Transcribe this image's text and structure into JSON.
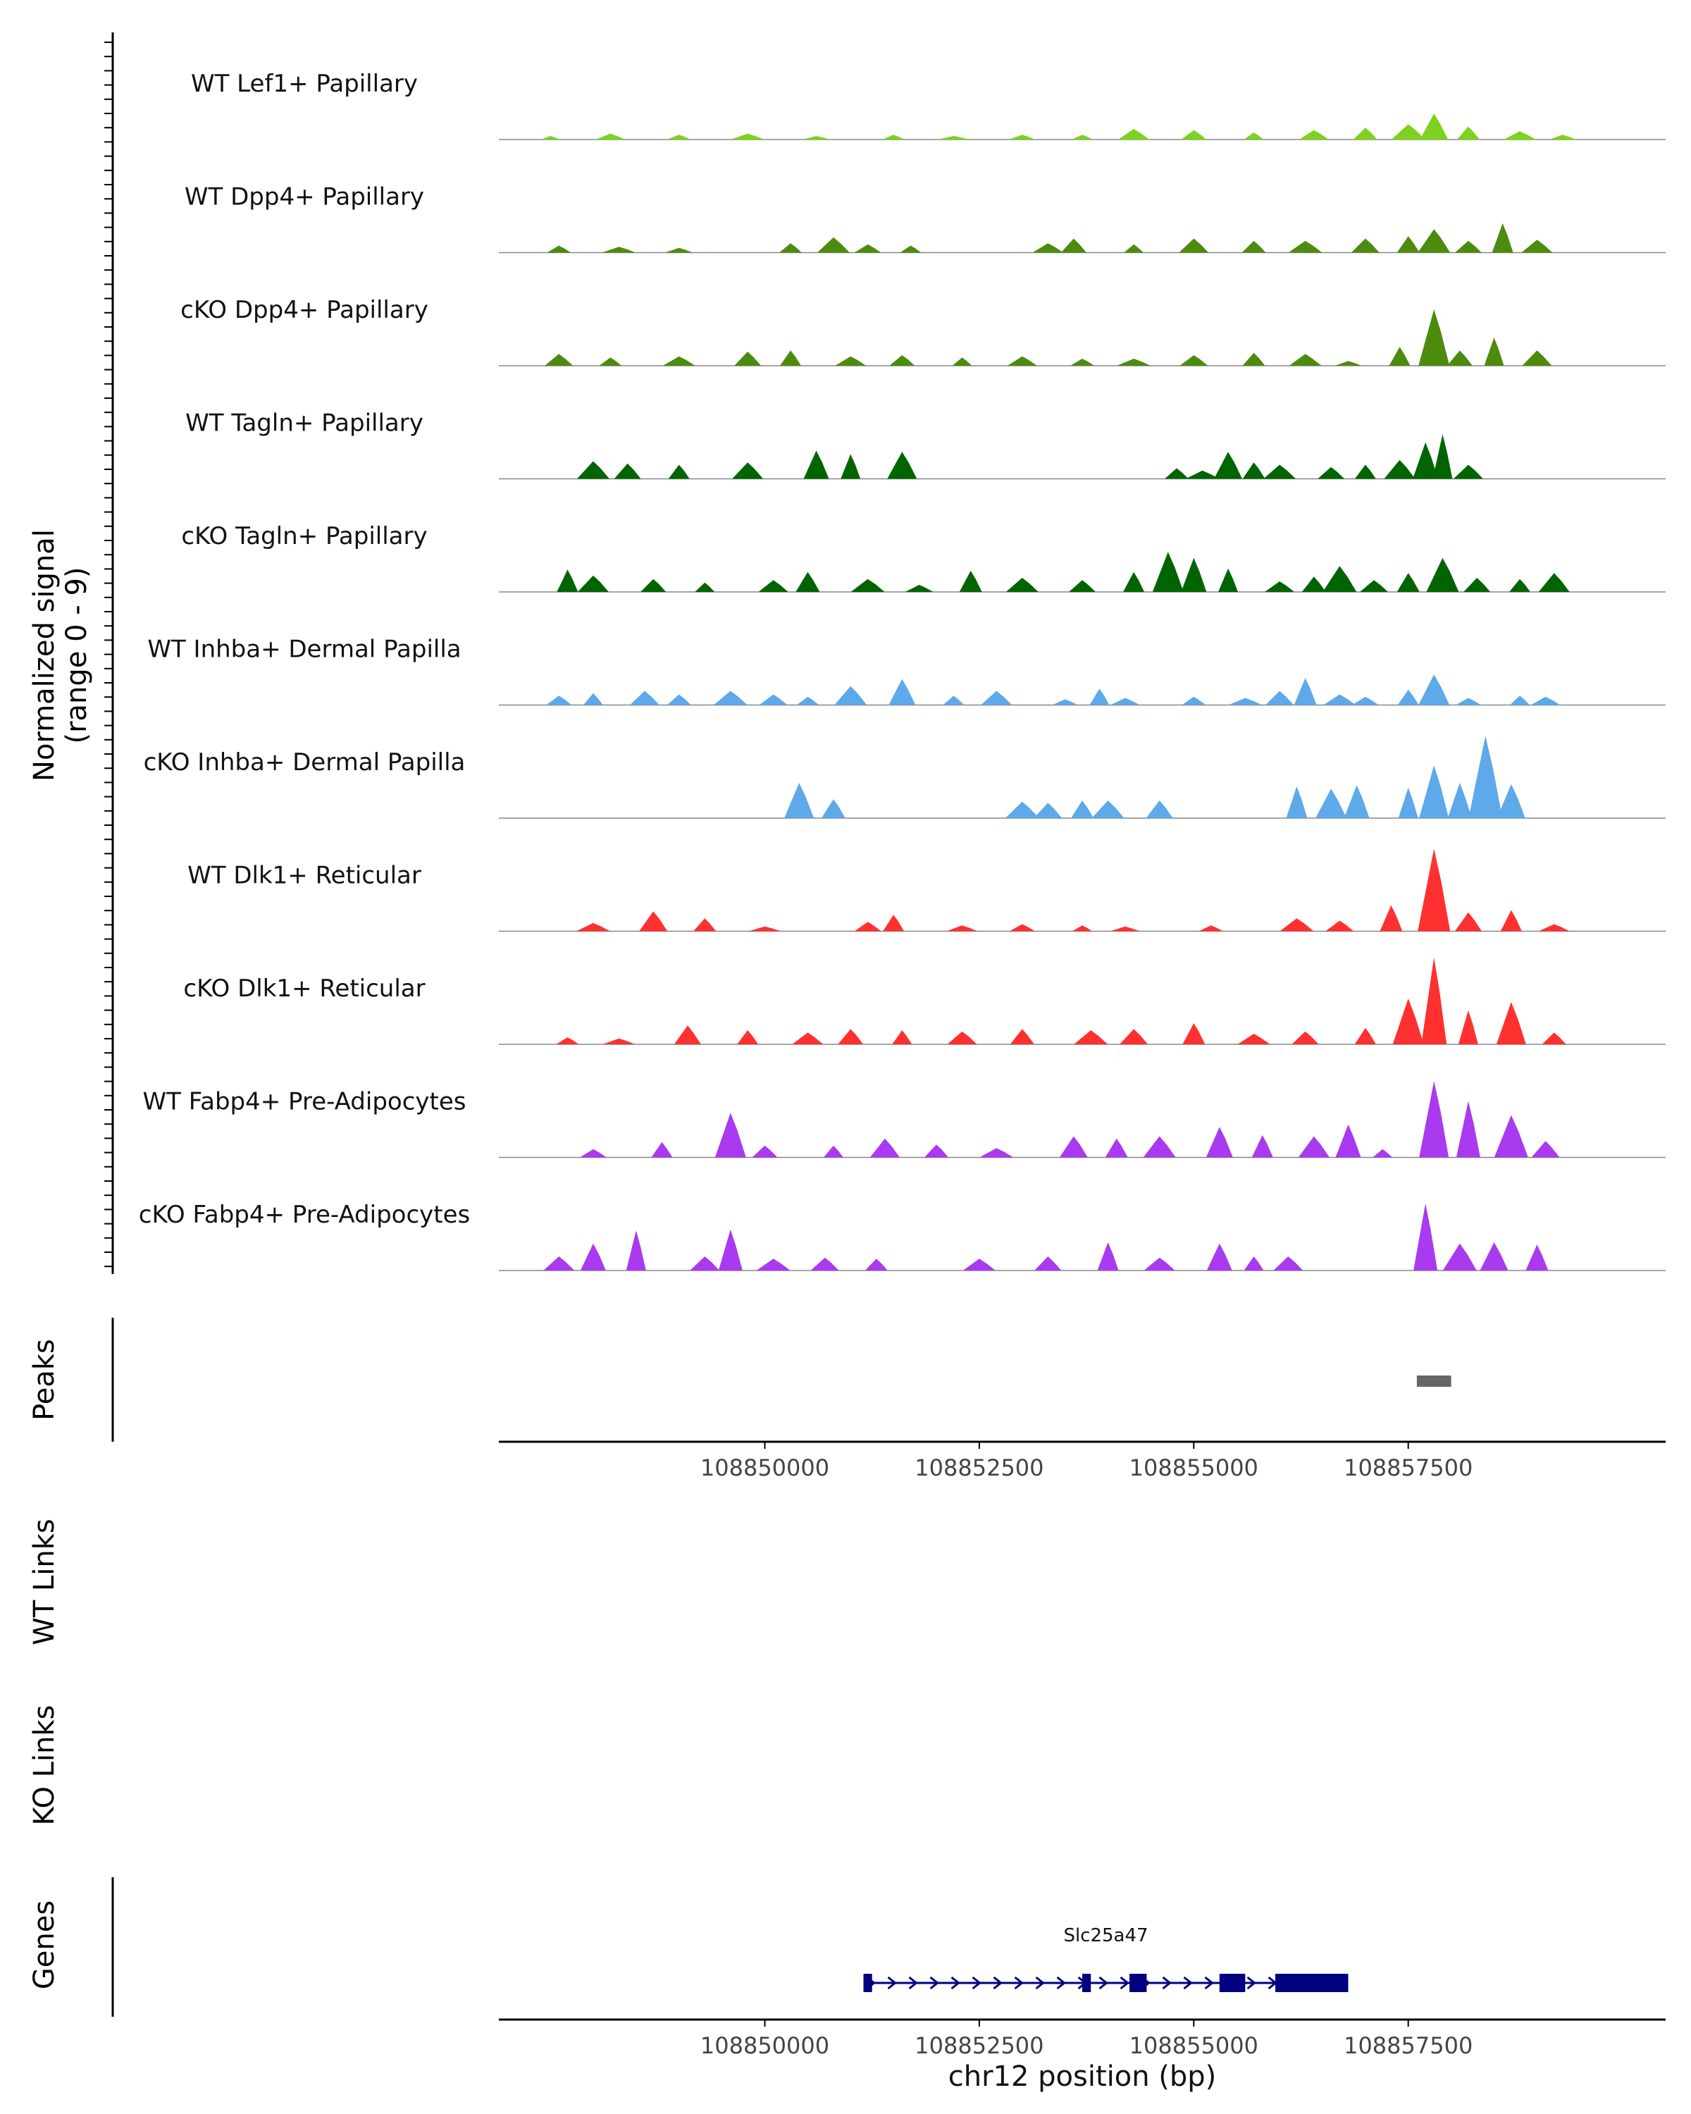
{
  "chart_data": {
    "type": "area",
    "chromosome": "chr12",
    "xlim": [
      108846900,
      108860500
    ],
    "xlabel": "chr12 position (bp)",
    "x_ticks": [
      108850000,
      108852500,
      108855000,
      108857500
    ],
    "x_tick_labels": [
      "108850000",
      "108852500",
      "108855000",
      "108857500"
    ],
    "signal_axis_label": "Normalized signal",
    "signal_axis_range_label": "(range 0 - 9)",
    "ylim": [
      0,
      9
    ],
    "tracks": [
      {
        "name": "WT Lef1+ Papillary",
        "color": "#7CD21C",
        "profile": [
          [
            108847500,
            0.3
          ],
          [
            108848200,
            0.5
          ],
          [
            108849000,
            0.4
          ],
          [
            108849800,
            0.5
          ],
          [
            108850600,
            0.3
          ],
          [
            108851500,
            0.4
          ],
          [
            108852200,
            0.3
          ],
          [
            108853000,
            0.4
          ],
          [
            108853700,
            0.4
          ],
          [
            108854300,
            0.9
          ],
          [
            108855000,
            0.8
          ],
          [
            108855700,
            0.6
          ],
          [
            108856400,
            0.8
          ],
          [
            108857000,
            1.0
          ],
          [
            108857500,
            1.3
          ],
          [
            108857800,
            2.2
          ],
          [
            108858200,
            1.1
          ],
          [
            108858800,
            0.7
          ],
          [
            108859300,
            0.4
          ]
        ]
      },
      {
        "name": "WT Dpp4+ Papillary",
        "color": "#4D8B0E",
        "profile": [
          [
            108847600,
            0.6
          ],
          [
            108848300,
            0.5
          ],
          [
            108849000,
            0.4
          ],
          [
            108850300,
            0.8
          ],
          [
            108850800,
            1.3
          ],
          [
            108851200,
            0.7
          ],
          [
            108851700,
            0.6
          ],
          [
            108853300,
            0.8
          ],
          [
            108853600,
            1.2
          ],
          [
            108854300,
            0.7
          ],
          [
            108855000,
            1.2
          ],
          [
            108855700,
            1.0
          ],
          [
            108856300,
            1.0
          ],
          [
            108857000,
            1.2
          ],
          [
            108857500,
            1.4
          ],
          [
            108857800,
            2.0
          ],
          [
            108858200,
            1.0
          ],
          [
            108858600,
            2.5
          ],
          [
            108859000,
            1.1
          ]
        ]
      },
      {
        "name": "cKO Dpp4+ Papillary",
        "color": "#4D8B0E",
        "profile": [
          [
            108847600,
            1.0
          ],
          [
            108848200,
            0.7
          ],
          [
            108849000,
            0.8
          ],
          [
            108849800,
            1.2
          ],
          [
            108850300,
            1.3
          ],
          [
            108851000,
            0.8
          ],
          [
            108851600,
            0.9
          ],
          [
            108852300,
            0.7
          ],
          [
            108853000,
            0.8
          ],
          [
            108853700,
            0.6
          ],
          [
            108854300,
            0.6
          ],
          [
            108855000,
            0.9
          ],
          [
            108855700,
            1.1
          ],
          [
            108856300,
            1.0
          ],
          [
            108856800,
            0.4
          ],
          [
            108857400,
            1.6
          ],
          [
            108857800,
            4.8
          ],
          [
            108858100,
            1.3
          ],
          [
            108858500,
            2.4
          ],
          [
            108859000,
            1.3
          ]
        ]
      },
      {
        "name": "WT Tagln+ Papillary",
        "color": "#006400",
        "profile": [
          [
            108848000,
            1.5
          ],
          [
            108848400,
            1.3
          ],
          [
            108849000,
            1.2
          ],
          [
            108849800,
            1.4
          ],
          [
            108850600,
            2.4
          ],
          [
            108851000,
            2.1
          ],
          [
            108851600,
            2.3
          ],
          [
            108854800,
            0.9
          ],
          [
            108855100,
            0.7
          ],
          [
            108855400,
            2.3
          ],
          [
            108855700,
            1.4
          ],
          [
            108856000,
            1.2
          ],
          [
            108856600,
            1.0
          ],
          [
            108857000,
            1.2
          ],
          [
            108857400,
            1.6
          ],
          [
            108857700,
            3.1
          ],
          [
            108857900,
            3.8
          ],
          [
            108858200,
            1.2
          ]
        ]
      },
      {
        "name": "cKO Tagln+ Papillary",
        "color": "#006400",
        "profile": [
          [
            108847700,
            1.9
          ],
          [
            108848000,
            1.4
          ],
          [
            108848700,
            1.1
          ],
          [
            108849300,
            0.8
          ],
          [
            108850100,
            1.0
          ],
          [
            108850500,
            1.7
          ],
          [
            108851200,
            1.1
          ],
          [
            108851800,
            0.6
          ],
          [
            108852400,
            1.8
          ],
          [
            108853000,
            1.2
          ],
          [
            108853700,
            1.0
          ],
          [
            108854300,
            1.7
          ],
          [
            108854700,
            3.4
          ],
          [
            108855000,
            2.9
          ],
          [
            108855400,
            2.0
          ],
          [
            108856000,
            0.9
          ],
          [
            108856400,
            1.3
          ],
          [
            108856700,
            2.2
          ],
          [
            108857100,
            1.0
          ],
          [
            108857500,
            1.6
          ],
          [
            108857900,
            2.9
          ],
          [
            108858300,
            1.2
          ],
          [
            108858800,
            1.1
          ],
          [
            108859200,
            1.6
          ]
        ]
      },
      {
        "name": "WT Inhba+ Dermal Papilla",
        "color": "#5DA9E9",
        "profile": [
          [
            108847600,
            0.8
          ],
          [
            108848000,
            1.0
          ],
          [
            108848600,
            1.2
          ],
          [
            108849000,
            0.9
          ],
          [
            108849600,
            1.2
          ],
          [
            108850100,
            0.9
          ],
          [
            108850500,
            0.7
          ],
          [
            108851000,
            1.6
          ],
          [
            108851600,
            2.2
          ],
          [
            108852200,
            0.8
          ],
          [
            108852700,
            1.2
          ],
          [
            108853500,
            0.5
          ],
          [
            108853900,
            1.4
          ],
          [
            108854200,
            0.6
          ],
          [
            108855000,
            0.7
          ],
          [
            108855600,
            0.6
          ],
          [
            108856000,
            1.2
          ],
          [
            108856300,
            2.3
          ],
          [
            108856700,
            0.9
          ],
          [
            108857000,
            0.7
          ],
          [
            108857500,
            1.3
          ],
          [
            108857800,
            2.6
          ],
          [
            108858200,
            0.6
          ],
          [
            108858800,
            0.8
          ],
          [
            108859100,
            0.7
          ]
        ]
      },
      {
        "name": "cKO Inhba+ Dermal Papilla",
        "color": "#5DA9E9",
        "profile": [
          [
            108850400,
            3.0
          ],
          [
            108850800,
            1.6
          ],
          [
            108853000,
            1.4
          ],
          [
            108853300,
            1.3
          ],
          [
            108853700,
            1.5
          ],
          [
            108854000,
            1.5
          ],
          [
            108854600,
            1.5
          ],
          [
            108856200,
            2.7
          ],
          [
            108856600,
            2.5
          ],
          [
            108856900,
            2.8
          ],
          [
            108857500,
            2.6
          ],
          [
            108857800,
            4.5
          ],
          [
            108858100,
            3.0
          ],
          [
            108858400,
            7.0
          ],
          [
            108858700,
            2.9
          ]
        ]
      },
      {
        "name": "WT Dlk1+ Reticular",
        "color": "#FF3030",
        "profile": [
          [
            108848000,
            0.7
          ],
          [
            108848700,
            1.7
          ],
          [
            108849300,
            1.1
          ],
          [
            108850000,
            0.4
          ],
          [
            108851200,
            0.8
          ],
          [
            108851500,
            1.4
          ],
          [
            108852300,
            0.5
          ],
          [
            108853000,
            0.6
          ],
          [
            108853700,
            0.5
          ],
          [
            108854200,
            0.4
          ],
          [
            108855200,
            0.5
          ],
          [
            108856200,
            1.1
          ],
          [
            108856700,
            0.9
          ],
          [
            108857300,
            2.2
          ],
          [
            108857800,
            7.0
          ],
          [
            108858200,
            1.6
          ],
          [
            108858700,
            1.8
          ],
          [
            108859200,
            0.6
          ]
        ]
      },
      {
        "name": "cKO Dlk1+ Reticular",
        "color": "#FF3030",
        "profile": [
          [
            108847700,
            0.6
          ],
          [
            108848300,
            0.5
          ],
          [
            108849100,
            1.6
          ],
          [
            108849800,
            1.2
          ],
          [
            108850500,
            1.0
          ],
          [
            108851000,
            1.3
          ],
          [
            108851600,
            1.2
          ],
          [
            108852300,
            1.1
          ],
          [
            108853000,
            1.3
          ],
          [
            108853800,
            1.2
          ],
          [
            108854300,
            1.3
          ],
          [
            108855000,
            1.8
          ],
          [
            108855700,
            0.9
          ],
          [
            108856300,
            1.1
          ],
          [
            108857000,
            1.4
          ],
          [
            108857500,
            3.9
          ],
          [
            108857800,
            7.4
          ],
          [
            108858200,
            2.9
          ],
          [
            108858700,
            3.6
          ],
          [
            108859200,
            1.0
          ]
        ]
      },
      {
        "name": "WT Fabp4+ Pre-Adipocytes",
        "color": "#A93AEF",
        "profile": [
          [
            108848000,
            0.7
          ],
          [
            108848800,
            1.3
          ],
          [
            108849600,
            3.8
          ],
          [
            108850000,
            1.0
          ],
          [
            108850800,
            1.0
          ],
          [
            108851400,
            1.6
          ],
          [
            108852000,
            1.1
          ],
          [
            108852700,
            0.8
          ],
          [
            108853600,
            1.8
          ],
          [
            108854100,
            1.6
          ],
          [
            108854600,
            1.8
          ],
          [
            108855300,
            2.6
          ],
          [
            108855800,
            1.9
          ],
          [
            108856400,
            1.8
          ],
          [
            108856800,
            2.8
          ],
          [
            108857200,
            0.7
          ],
          [
            108857800,
            6.5
          ],
          [
            108858200,
            4.8
          ],
          [
            108858700,
            3.6
          ],
          [
            108859100,
            1.4
          ]
        ]
      },
      {
        "name": "cKO Fabp4+ Pre-Adipocytes",
        "color": "#A93AEF",
        "profile": [
          [
            108847600,
            1.2
          ],
          [
            108848000,
            2.3
          ],
          [
            108848500,
            3.4
          ],
          [
            108849300,
            1.2
          ],
          [
            108849600,
            3.5
          ],
          [
            108850100,
            1.0
          ],
          [
            108850700,
            1.1
          ],
          [
            108851300,
            1.0
          ],
          [
            108852500,
            1.0
          ],
          [
            108853300,
            1.2
          ],
          [
            108854000,
            2.4
          ],
          [
            108854600,
            1.1
          ],
          [
            108855300,
            2.3
          ],
          [
            108855700,
            1.2
          ],
          [
            108856100,
            1.2
          ],
          [
            108857700,
            5.7
          ],
          [
            108858100,
            2.3
          ],
          [
            108858500,
            2.4
          ],
          [
            108859000,
            2.2
          ]
        ]
      }
    ],
    "peaks": [
      {
        "start": 108857600,
        "end": 108858000
      }
    ],
    "peaks_label": "Peaks",
    "links_panels": [
      "WT Links",
      "KO Links"
    ],
    "genes_label": "Genes",
    "gene": {
      "name": "Slc25a47",
      "color": "#000080",
      "strand": "+",
      "start": 108851150,
      "end": 108856800,
      "exons": [
        [
          108851150,
          108851250
        ],
        [
          108853700,
          108853800
        ],
        [
          108854250,
          108854450
        ],
        [
          108855300,
          108855600
        ],
        [
          108855950,
          108856800
        ]
      ]
    }
  }
}
